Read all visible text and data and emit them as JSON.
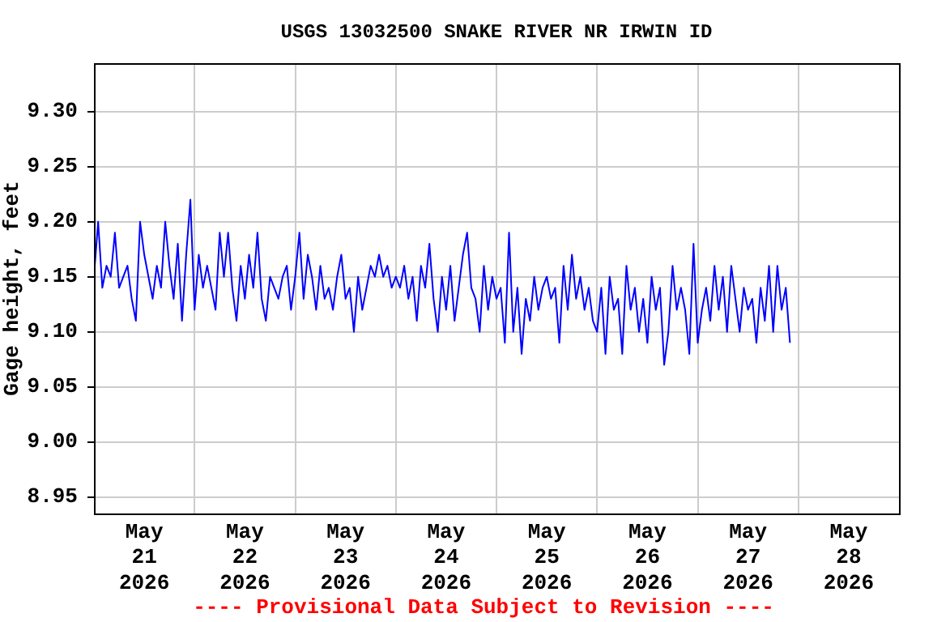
{
  "chart_data": {
    "type": "line",
    "title": "USGS 13032500 SNAKE RIVER NR IRWIN ID",
    "ylabel": "Gage height, feet",
    "annotations": [
      "---- Provisional Data Subject to Revision ----"
    ],
    "x": [
      "2026-05-21T00:00",
      "2026-05-21T01:00",
      "2026-05-21T02:00",
      "2026-05-21T03:00",
      "2026-05-21T04:00",
      "2026-05-21T05:00",
      "2026-05-21T06:00",
      "2026-05-21T07:00",
      "2026-05-21T08:00",
      "2026-05-21T09:00",
      "2026-05-21T10:00",
      "2026-05-21T11:00",
      "2026-05-21T12:00",
      "2026-05-21T13:00",
      "2026-05-21T14:00",
      "2026-05-21T15:00",
      "2026-05-21T16:00",
      "2026-05-21T17:00",
      "2026-05-21T18:00",
      "2026-05-21T19:00",
      "2026-05-21T20:00",
      "2026-05-21T21:00",
      "2026-05-21T22:00",
      "2026-05-21T23:00",
      "2026-05-22T00:00",
      "2026-05-22T01:00",
      "2026-05-22T02:00",
      "2026-05-22T03:00",
      "2026-05-22T04:00",
      "2026-05-22T05:00",
      "2026-05-22T06:00",
      "2026-05-22T07:00",
      "2026-05-22T08:00",
      "2026-05-22T09:00",
      "2026-05-22T10:00",
      "2026-05-22T11:00",
      "2026-05-22T12:00",
      "2026-05-22T13:00",
      "2026-05-22T14:00",
      "2026-05-22T15:00",
      "2026-05-22T16:00",
      "2026-05-22T17:00",
      "2026-05-22T18:00",
      "2026-05-22T19:00",
      "2026-05-22T20:00",
      "2026-05-22T21:00",
      "2026-05-22T22:00",
      "2026-05-22T23:00",
      "2026-05-23T00:00",
      "2026-05-23T01:00",
      "2026-05-23T02:00",
      "2026-05-23T03:00",
      "2026-05-23T04:00",
      "2026-05-23T05:00",
      "2026-05-23T06:00",
      "2026-05-23T07:00",
      "2026-05-23T08:00",
      "2026-05-23T09:00",
      "2026-05-23T10:00",
      "2026-05-23T11:00",
      "2026-05-23T12:00",
      "2026-05-23T13:00",
      "2026-05-23T14:00",
      "2026-05-23T15:00",
      "2026-05-23T16:00",
      "2026-05-23T17:00",
      "2026-05-23T18:00",
      "2026-05-23T19:00",
      "2026-05-23T20:00",
      "2026-05-23T21:00",
      "2026-05-23T22:00",
      "2026-05-23T23:00",
      "2026-05-24T00:00",
      "2026-05-24T01:00",
      "2026-05-24T02:00",
      "2026-05-24T03:00",
      "2026-05-24T04:00",
      "2026-05-24T05:00",
      "2026-05-24T06:00",
      "2026-05-24T07:00",
      "2026-05-24T08:00",
      "2026-05-24T09:00",
      "2026-05-24T10:00",
      "2026-05-24T11:00",
      "2026-05-24T12:00",
      "2026-05-24T13:00",
      "2026-05-24T14:00",
      "2026-05-24T15:00",
      "2026-05-24T16:00",
      "2026-05-24T17:00",
      "2026-05-24T18:00",
      "2026-05-24T19:00",
      "2026-05-24T20:00",
      "2026-05-24T21:00",
      "2026-05-24T22:00",
      "2026-05-24T23:00",
      "2026-05-25T00:00",
      "2026-05-25T01:00",
      "2026-05-25T02:00",
      "2026-05-25T03:00",
      "2026-05-25T04:00",
      "2026-05-25T05:00",
      "2026-05-25T06:00",
      "2026-05-25T07:00",
      "2026-05-25T08:00",
      "2026-05-25T09:00",
      "2026-05-25T10:00",
      "2026-05-25T11:00",
      "2026-05-25T12:00",
      "2026-05-25T13:00",
      "2026-05-25T14:00",
      "2026-05-25T15:00",
      "2026-05-25T16:00",
      "2026-05-25T17:00",
      "2026-05-25T18:00",
      "2026-05-25T19:00",
      "2026-05-25T20:00",
      "2026-05-25T21:00",
      "2026-05-25T22:00",
      "2026-05-25T23:00",
      "2026-05-26T00:00",
      "2026-05-26T01:00",
      "2026-05-26T02:00",
      "2026-05-26T03:00",
      "2026-05-26T04:00",
      "2026-05-26T05:00",
      "2026-05-26T06:00",
      "2026-05-26T07:00",
      "2026-05-26T08:00",
      "2026-05-26T09:00",
      "2026-05-26T10:00",
      "2026-05-26T11:00",
      "2026-05-26T12:00",
      "2026-05-26T13:00",
      "2026-05-26T14:00",
      "2026-05-26T15:00",
      "2026-05-26T16:00",
      "2026-05-26T17:00",
      "2026-05-26T18:00",
      "2026-05-26T19:00",
      "2026-05-26T20:00",
      "2026-05-26T21:00",
      "2026-05-26T22:00",
      "2026-05-26T23:00",
      "2026-05-27T00:00",
      "2026-05-27T01:00",
      "2026-05-27T02:00",
      "2026-05-27T03:00",
      "2026-05-27T04:00",
      "2026-05-27T05:00",
      "2026-05-27T06:00",
      "2026-05-27T07:00",
      "2026-05-27T08:00",
      "2026-05-27T09:00",
      "2026-05-27T10:00",
      "2026-05-27T11:00",
      "2026-05-27T12:00",
      "2026-05-27T13:00",
      "2026-05-27T14:00",
      "2026-05-27T15:00",
      "2026-05-27T16:00",
      "2026-05-27T17:00",
      "2026-05-27T18:00",
      "2026-05-27T19:00",
      "2026-05-27T20:00",
      "2026-05-27T21:00",
      "2026-05-27T22:00"
    ],
    "series": [
      {
        "color": "#0000ff",
        "values": [
          9.15,
          9.2,
          9.14,
          9.16,
          9.15,
          9.19,
          9.14,
          9.15,
          9.16,
          9.13,
          9.11,
          9.2,
          9.17,
          9.15,
          9.13,
          9.16,
          9.14,
          9.2,
          9.16,
          9.13,
          9.18,
          9.11,
          9.17,
          9.22,
          9.12,
          9.17,
          9.14,
          9.16,
          9.14,
          9.12,
          9.19,
          9.15,
          9.19,
          9.14,
          9.11,
          9.16,
          9.13,
          9.17,
          9.14,
          9.19,
          9.13,
          9.11,
          9.15,
          9.14,
          9.13,
          9.15,
          9.16,
          9.12,
          9.15,
          9.19,
          9.13,
          9.17,
          9.15,
          9.12,
          9.16,
          9.13,
          9.14,
          9.12,
          9.15,
          9.17,
          9.13,
          9.14,
          9.1,
          9.15,
          9.12,
          9.14,
          9.16,
          9.15,
          9.17,
          9.15,
          9.16,
          9.14,
          9.15,
          9.14,
          9.16,
          9.13,
          9.15,
          9.11,
          9.16,
          9.14,
          9.18,
          9.13,
          9.1,
          9.15,
          9.12,
          9.16,
          9.11,
          9.14,
          9.17,
          9.19,
          9.14,
          9.13,
          9.1,
          9.16,
          9.12,
          9.15,
          9.13,
          9.14,
          9.09,
          9.19,
          9.1,
          9.14,
          9.08,
          9.13,
          9.11,
          9.15,
          9.12,
          9.14,
          9.15,
          9.13,
          9.14,
          9.09,
          9.16,
          9.12,
          9.17,
          9.13,
          9.15,
          9.12,
          9.14,
          9.11,
          9.1,
          9.14,
          9.08,
          9.15,
          9.12,
          9.13,
          9.08,
          9.16,
          9.12,
          9.14,
          9.1,
          9.13,
          9.09,
          9.15,
          9.12,
          9.14,
          9.07,
          9.1,
          9.16,
          9.12,
          9.14,
          9.12,
          9.08,
          9.18,
          9.09,
          9.12,
          9.14,
          9.11,
          9.16,
          9.12,
          9.15,
          9.1,
          9.16,
          9.13,
          9.1,
          9.14,
          9.12,
          9.13,
          9.09,
          9.14,
          9.11,
          9.16,
          9.1,
          9.16,
          9.12,
          9.14,
          9.09
        ]
      }
    ],
    "xlim": [
      "2026-05-21T00:00",
      "2026-05-29T00:00"
    ],
    "xticks": [
      {
        "value": "2026-05-21T12:00",
        "label": "May\n21\n2026"
      },
      {
        "value": "2026-05-22T00:00",
        "label": null
      },
      {
        "value": "2026-05-22T12:00",
        "label": "May\n22\n2026"
      },
      {
        "value": "2026-05-23T00:00",
        "label": null
      },
      {
        "value": "2026-05-23T12:00",
        "label": "May\n23\n2026"
      },
      {
        "value": "2026-05-24T00:00",
        "label": null
      },
      {
        "value": "2026-05-24T12:00",
        "label": "May\n24\n2026"
      },
      {
        "value": "2026-05-25T00:00",
        "label": null
      },
      {
        "value": "2026-05-25T12:00",
        "label": "May\n25\n2026"
      },
      {
        "value": "2026-05-26T00:00",
        "label": null
      },
      {
        "value": "2026-05-26T12:00",
        "label": "May\n26\n2026"
      },
      {
        "value": "2026-05-27T00:00",
        "label": null
      },
      {
        "value": "2026-05-27T12:00",
        "label": "May\n27\n2026"
      },
      {
        "value": "2026-05-28T00:00",
        "label": null
      },
      {
        "value": "2026-05-28T12:00",
        "label": "May\n28\n2026"
      }
    ],
    "ylim": [
      8.935,
      9.344
    ],
    "yticks": [
      {
        "value": 8.95,
        "label": "8.95"
      },
      {
        "value": 9.0,
        "label": "9.00"
      },
      {
        "value": 9.05,
        "label": "9.05"
      },
      {
        "value": 9.1,
        "label": "9.10"
      },
      {
        "value": 9.15,
        "label": "9.15"
      },
      {
        "value": 9.2,
        "label": "9.20"
      },
      {
        "value": 9.25,
        "label": "9.25"
      },
      {
        "value": 9.3,
        "label": "9.30"
      }
    ],
    "grid": true,
    "legend": false
  }
}
